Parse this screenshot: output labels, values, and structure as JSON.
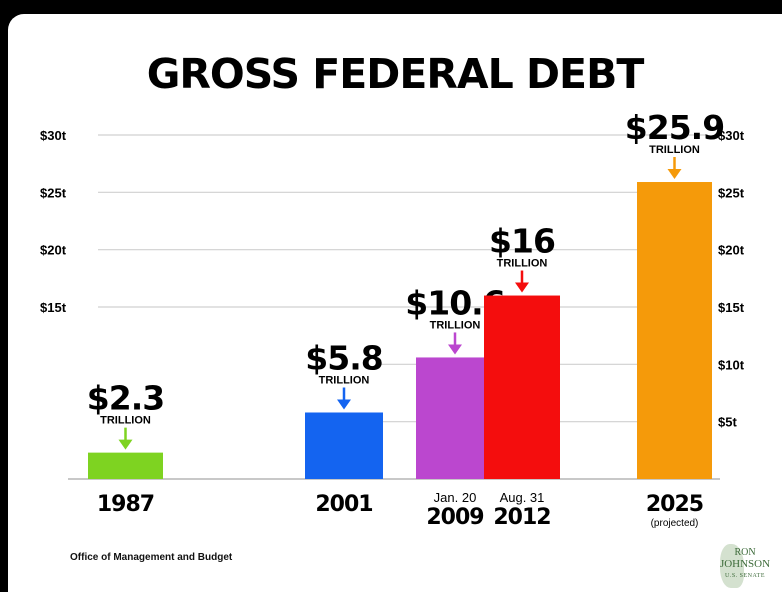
{
  "chart_data": {
    "type": "bar",
    "title": "GROSS FEDERAL DEBT",
    "categories": [
      "1987",
      "2001",
      "2009",
      "2012",
      "2025"
    ],
    "category_prefix": [
      "",
      "",
      "Jan. 20",
      "Aug. 31",
      ""
    ],
    "category_note": [
      "",
      "",
      "",
      "",
      "(projected)"
    ],
    "values": [
      2.3,
      5.8,
      10.6,
      16,
      25.9
    ],
    "value_labels": [
      "$2.3",
      "$5.8",
      "$10.6",
      "$16",
      "$25.9"
    ],
    "unit_label": "TRILLION",
    "colors": [
      "#7ed321",
      "#1464f0",
      "#bb47cf",
      "#f40d0d",
      "#f59a0a"
    ],
    "ylim": [
      0,
      30
    ],
    "left_ticks": [
      {
        "value": 15,
        "label": "$15t"
      },
      {
        "value": 20,
        "label": "$20t"
      },
      {
        "value": 25,
        "label": "$25t"
      },
      {
        "value": 30,
        "label": "$30t"
      }
    ],
    "right_ticks": [
      {
        "value": 5,
        "label": "$5t"
      },
      {
        "value": 10,
        "label": "$10t"
      },
      {
        "value": 15,
        "label": "$15t"
      },
      {
        "value": 20,
        "label": "$20t"
      },
      {
        "value": 25,
        "label": "$25t"
      },
      {
        "value": 30,
        "label": "$30t"
      }
    ],
    "grid": true
  },
  "source": "Office of Management and Budget",
  "logo": {
    "line1": "RON",
    "line2": "JOHNSON",
    "line3": "U.S. SENATE"
  }
}
